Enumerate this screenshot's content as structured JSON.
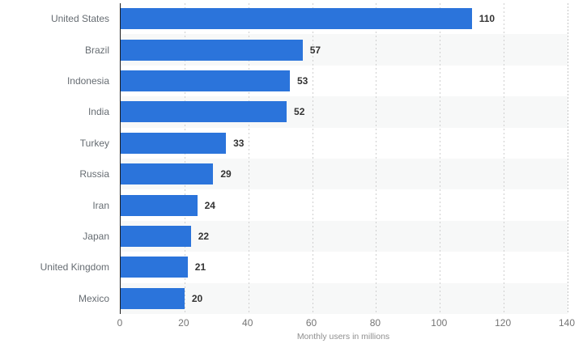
{
  "chart_data": {
    "type": "bar",
    "orientation": "horizontal",
    "categories": [
      "United States",
      "Brazil",
      "Indonesia",
      "India",
      "Turkey",
      "Russia",
      "Iran",
      "Japan",
      "United Kingdom",
      "Mexico"
    ],
    "values": [
      110,
      57,
      53,
      52,
      33,
      29,
      24,
      22,
      21,
      20
    ],
    "title": "",
    "xlabel": "Monthly users in millions",
    "ylabel": "",
    "xlim": [
      0,
      140
    ],
    "xticks": [
      0,
      20,
      40,
      60,
      80,
      100,
      120,
      140
    ],
    "grid": "vertical-dotted",
    "legend": "none",
    "value_labels": true,
    "banded_rows": "even rows shaded"
  },
  "colors": {
    "bar": "#2b74db",
    "axis_line": "#1c1c1c",
    "gridline": "#cfcfcf",
    "band": "#f7f8f8",
    "category_label": "#666c72",
    "value_label": "#333333",
    "tick_label": "#757575",
    "axis_title": "#8f8f8f",
    "background": "#ffffff"
  }
}
